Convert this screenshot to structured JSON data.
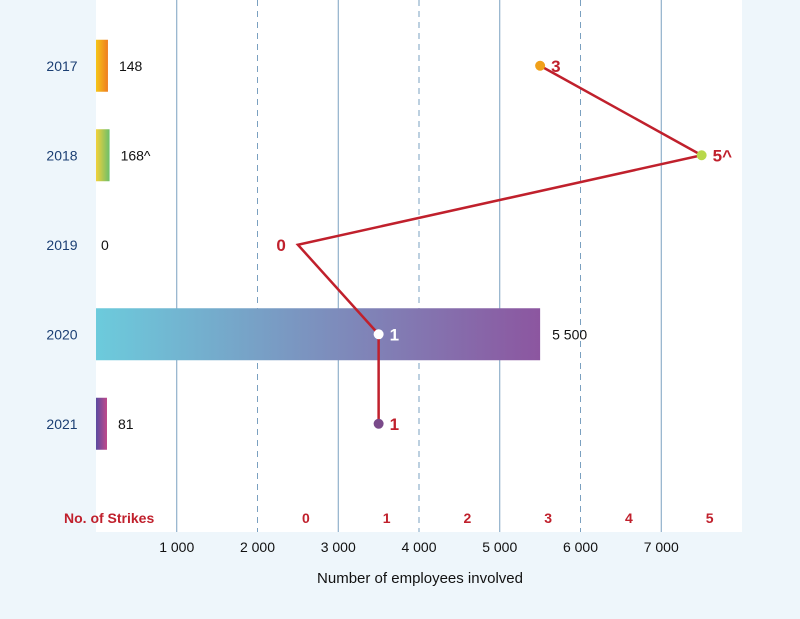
{
  "chart_data": {
    "type": "bar",
    "orientation": "horizontal",
    "categories": [
      "2017",
      "2018",
      "2019",
      "2020",
      "2021"
    ],
    "series": [
      {
        "values": [
          148,
          168,
          0,
          5500,
          81
        ],
        "value_labels": [
          "148",
          "168^",
          "0",
          "5 500",
          "81"
        ],
        "colors": [
          [
            "#f5c518",
            "#ef7d22"
          ],
          [
            "#f2d13a",
            "#6cbf6a"
          ],
          [
            "#cccccc",
            "#cccccc"
          ],
          [
            "#6ccbdc",
            "#8c56a0"
          ],
          [
            "#5a4aa0",
            "#c04a8a"
          ]
        ]
      },
      {
        "values": [
          3,
          5,
          0,
          1,
          1
        ],
        "point_labels": [
          "3",
          "5^",
          "0",
          "1",
          "1"
        ],
        "point_colors": [
          "#f0a01a",
          "#b8d84a",
          "#c0202c",
          "#ffffff",
          "#7a4a8a"
        ],
        "line_color": "#c0202c"
      }
    ],
    "xlabel": "Number of employees involved",
    "xlim": [
      0,
      8000
    ],
    "xticks": [
      1000,
      2000,
      3000,
      4000,
      5000,
      6000,
      7000
    ],
    "xtick_labels": [
      "1 000",
      "2 000",
      "3 000",
      "4 000",
      "5 000",
      "6 000",
      "7 000"
    ],
    "secondary_axis": {
      "title": "No. of Strikes",
      "ticks": [
        0,
        1,
        2,
        3,
        4,
        5
      ],
      "tick_labels": [
        "0",
        "1",
        "2",
        "3",
        "4",
        "5"
      ],
      "range": [
        -2.5,
        5.5
      ]
    },
    "grid": true,
    "legend": "none"
  }
}
